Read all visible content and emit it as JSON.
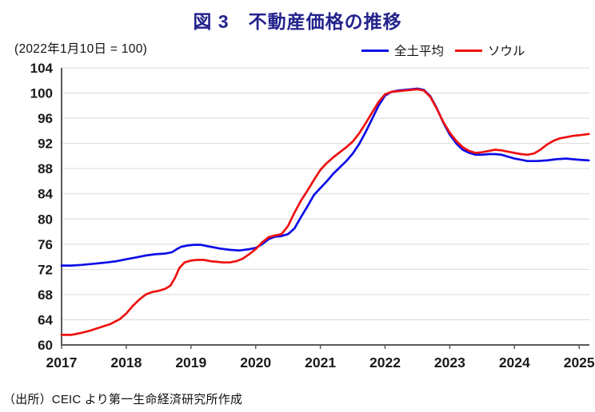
{
  "title": "図 3　不動産価格の推移",
  "subtitle": "(2022年1月10日 = 100)",
  "source": "（出所）CEIC より第一生命経済研究所作成",
  "legend": [
    {
      "label": "全土平均",
      "color": "#0d0de8"
    },
    {
      "label": "ソウル",
      "color": "#ee1111"
    }
  ],
  "colors": {
    "title": "#23238c",
    "axis": "#595959",
    "gridline": "#d9d9d9",
    "tick_label": "#1a1a1a",
    "series_nationwide": "#0d0de8",
    "series_seoul": "#ee1111"
  },
  "chart_data": {
    "type": "line",
    "title": "図 3　不動産価格の推移",
    "subtitle": "(2022年1月10日 = 100)",
    "xlabel": "",
    "ylabel": "",
    "x_ticks": [
      2017,
      2018,
      2019,
      2020,
      2021,
      2022,
      2023,
      2024,
      2025
    ],
    "y_ticks": [
      60,
      64,
      68,
      72,
      76,
      80,
      84,
      88,
      92,
      96,
      100,
      104
    ],
    "ylim": [
      60,
      104
    ],
    "xlim": [
      2017,
      2025.2
    ],
    "grid": "horizontal",
    "legend_position": "top-right",
    "series": [
      {
        "name": "全土平均",
        "color": "#0d0de8",
        "points": [
          [
            2017.0,
            72.6
          ],
          [
            2017.15,
            72.6
          ],
          [
            2017.3,
            72.7
          ],
          [
            2017.5,
            72.9
          ],
          [
            2017.7,
            73.1
          ],
          [
            2017.85,
            73.3
          ],
          [
            2018.0,
            73.6
          ],
          [
            2018.15,
            73.9
          ],
          [
            2018.3,
            74.2
          ],
          [
            2018.45,
            74.4
          ],
          [
            2018.6,
            74.5
          ],
          [
            2018.7,
            74.7
          ],
          [
            2018.78,
            75.2
          ],
          [
            2018.85,
            75.6
          ],
          [
            2018.95,
            75.8
          ],
          [
            2019.05,
            75.9
          ],
          [
            2019.15,
            75.9
          ],
          [
            2019.3,
            75.6
          ],
          [
            2019.45,
            75.3
          ],
          [
            2019.6,
            75.1
          ],
          [
            2019.75,
            75.0
          ],
          [
            2019.9,
            75.2
          ],
          [
            2020.0,
            75.4
          ],
          [
            2020.1,
            76.0
          ],
          [
            2020.2,
            76.8
          ],
          [
            2020.3,
            77.2
          ],
          [
            2020.4,
            77.3
          ],
          [
            2020.5,
            77.6
          ],
          [
            2020.6,
            78.5
          ],
          [
            2020.7,
            80.3
          ],
          [
            2020.8,
            82.0
          ],
          [
            2020.9,
            83.8
          ],
          [
            2021.0,
            84.9
          ],
          [
            2021.1,
            86.0
          ],
          [
            2021.2,
            87.2
          ],
          [
            2021.3,
            88.2
          ],
          [
            2021.4,
            89.2
          ],
          [
            2021.5,
            90.4
          ],
          [
            2021.6,
            91.9
          ],
          [
            2021.7,
            93.8
          ],
          [
            2021.8,
            95.9
          ],
          [
            2021.9,
            98.0
          ],
          [
            2022.0,
            99.6
          ],
          [
            2022.1,
            100.2
          ],
          [
            2022.2,
            100.4
          ],
          [
            2022.3,
            100.5
          ],
          [
            2022.4,
            100.6
          ],
          [
            2022.5,
            100.7
          ],
          [
            2022.6,
            100.5
          ],
          [
            2022.7,
            99.5
          ],
          [
            2022.8,
            97.6
          ],
          [
            2022.9,
            95.3
          ],
          [
            2023.0,
            93.4
          ],
          [
            2023.1,
            92.0
          ],
          [
            2023.2,
            91.0
          ],
          [
            2023.3,
            90.5
          ],
          [
            2023.4,
            90.2
          ],
          [
            2023.5,
            90.2
          ],
          [
            2023.6,
            90.3
          ],
          [
            2023.7,
            90.3
          ],
          [
            2023.8,
            90.2
          ],
          [
            2023.9,
            89.9
          ],
          [
            2024.0,
            89.6
          ],
          [
            2024.1,
            89.4
          ],
          [
            2024.2,
            89.2
          ],
          [
            2024.35,
            89.2
          ],
          [
            2024.5,
            89.3
          ],
          [
            2024.65,
            89.5
          ],
          [
            2024.8,
            89.6
          ],
          [
            2024.9,
            89.5
          ],
          [
            2025.0,
            89.4
          ],
          [
            2025.15,
            89.3
          ]
        ]
      },
      {
        "name": "ソウル",
        "color": "#ee1111",
        "points": [
          [
            2017.0,
            61.6
          ],
          [
            2017.15,
            61.6
          ],
          [
            2017.3,
            61.9
          ],
          [
            2017.45,
            62.3
          ],
          [
            2017.6,
            62.8
          ],
          [
            2017.75,
            63.3
          ],
          [
            2017.9,
            64.1
          ],
          [
            2018.0,
            65.0
          ],
          [
            2018.1,
            66.2
          ],
          [
            2018.2,
            67.2
          ],
          [
            2018.3,
            68.0
          ],
          [
            2018.4,
            68.4
          ],
          [
            2018.5,
            68.6
          ],
          [
            2018.6,
            68.9
          ],
          [
            2018.68,
            69.4
          ],
          [
            2018.75,
            70.6
          ],
          [
            2018.82,
            72.2
          ],
          [
            2018.9,
            73.1
          ],
          [
            2019.0,
            73.4
          ],
          [
            2019.1,
            73.5
          ],
          [
            2019.2,
            73.5
          ],
          [
            2019.3,
            73.3
          ],
          [
            2019.4,
            73.2
          ],
          [
            2019.5,
            73.1
          ],
          [
            2019.6,
            73.1
          ],
          [
            2019.7,
            73.3
          ],
          [
            2019.8,
            73.7
          ],
          [
            2019.9,
            74.4
          ],
          [
            2020.0,
            75.2
          ],
          [
            2020.1,
            76.3
          ],
          [
            2020.2,
            77.1
          ],
          [
            2020.3,
            77.4
          ],
          [
            2020.4,
            77.6
          ],
          [
            2020.5,
            78.9
          ],
          [
            2020.6,
            81.0
          ],
          [
            2020.7,
            82.9
          ],
          [
            2020.8,
            84.5
          ],
          [
            2020.9,
            86.2
          ],
          [
            2021.0,
            87.8
          ],
          [
            2021.1,
            88.9
          ],
          [
            2021.2,
            89.8
          ],
          [
            2021.3,
            90.6
          ],
          [
            2021.4,
            91.4
          ],
          [
            2021.5,
            92.3
          ],
          [
            2021.6,
            93.6
          ],
          [
            2021.7,
            95.2
          ],
          [
            2021.8,
            96.9
          ],
          [
            2021.9,
            98.6
          ],
          [
            2022.0,
            99.8
          ],
          [
            2022.1,
            100.2
          ],
          [
            2022.2,
            100.3
          ],
          [
            2022.3,
            100.4
          ],
          [
            2022.4,
            100.5
          ],
          [
            2022.5,
            100.6
          ],
          [
            2022.6,
            100.4
          ],
          [
            2022.7,
            99.4
          ],
          [
            2022.8,
            97.5
          ],
          [
            2022.9,
            95.4
          ],
          [
            2023.0,
            93.7
          ],
          [
            2023.1,
            92.4
          ],
          [
            2023.2,
            91.4
          ],
          [
            2023.3,
            90.8
          ],
          [
            2023.4,
            90.5
          ],
          [
            2023.5,
            90.6
          ],
          [
            2023.6,
            90.8
          ],
          [
            2023.7,
            91.0
          ],
          [
            2023.8,
            90.9
          ],
          [
            2023.9,
            90.7
          ],
          [
            2024.0,
            90.5
          ],
          [
            2024.1,
            90.3
          ],
          [
            2024.2,
            90.2
          ],
          [
            2024.3,
            90.4
          ],
          [
            2024.4,
            91.0
          ],
          [
            2024.5,
            91.8
          ],
          [
            2024.6,
            92.4
          ],
          [
            2024.7,
            92.8
          ],
          [
            2024.8,
            93.0
          ],
          [
            2024.9,
            93.2
          ],
          [
            2025.0,
            93.3
          ],
          [
            2025.15,
            93.5
          ]
        ]
      }
    ]
  }
}
